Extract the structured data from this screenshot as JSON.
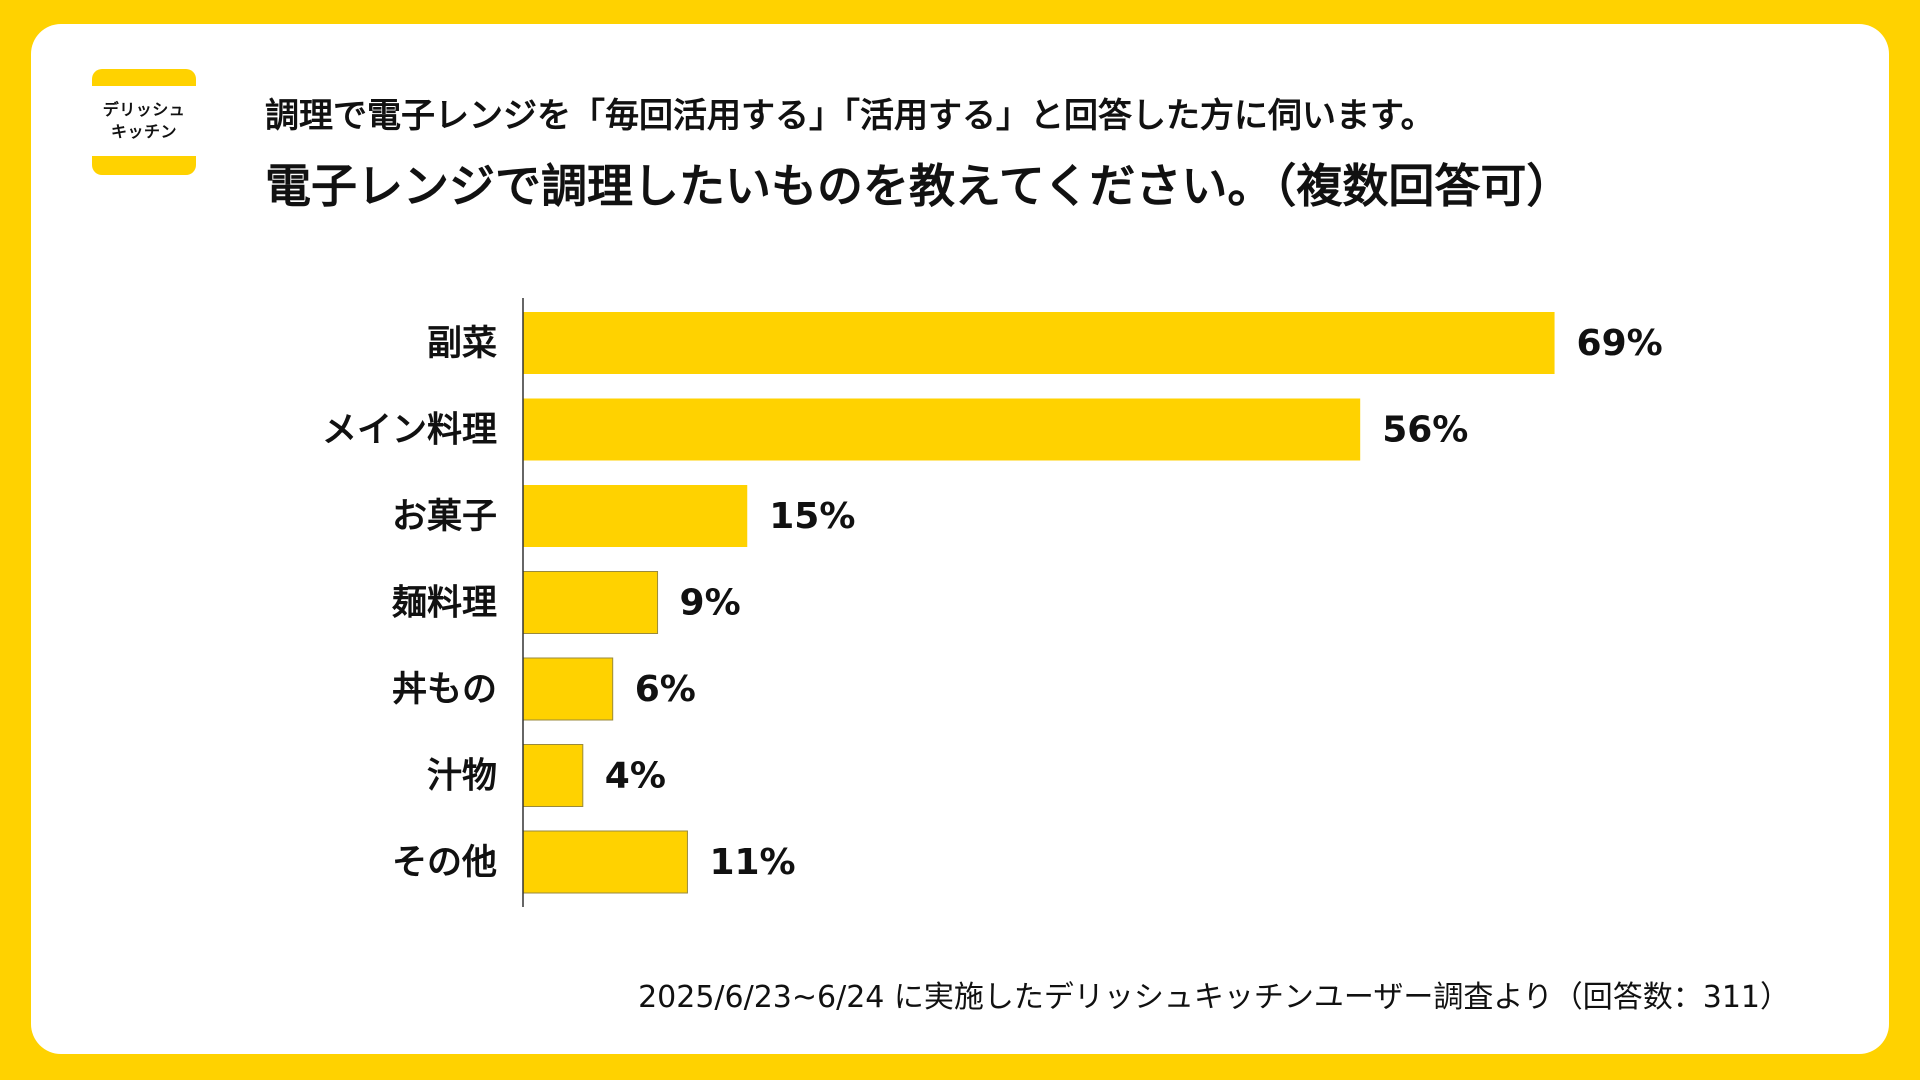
{
  "logo": {
    "line1": "デリッシュ",
    "line2": "キッチン"
  },
  "header": {
    "subtitle": "調理で電子レンジを「毎回活用する」「活用する」と回答した方に伺います。",
    "title": "電子レンジで調理したいものを教えてください。（複数回答可）"
  },
  "footnote": "2025/6/23~6/24 に実施したデリッシュキッチンユーザー調査より（回答数：311）",
  "colors": {
    "background": "#FFD200",
    "bar": "#FFD200",
    "bar_outline": "#9a8a3c",
    "axis": "#333333"
  },
  "chart_data": {
    "type": "bar",
    "orientation": "horizontal",
    "categories": [
      "副菜",
      "メイン料理",
      "お菓子",
      "麺料理",
      "丼もの",
      "汁物",
      "その他"
    ],
    "values": [
      69,
      56,
      15,
      9,
      6,
      4,
      11
    ],
    "value_labels": [
      "69%",
      "56%",
      "15%",
      "9%",
      "6%",
      "4%",
      "11%"
    ],
    "unit": "%",
    "title": "電子レンジで調理したいものを教えてください。（複数回答可）",
    "xlabel": "",
    "ylabel": "",
    "grid": false,
    "legend": "none"
  }
}
